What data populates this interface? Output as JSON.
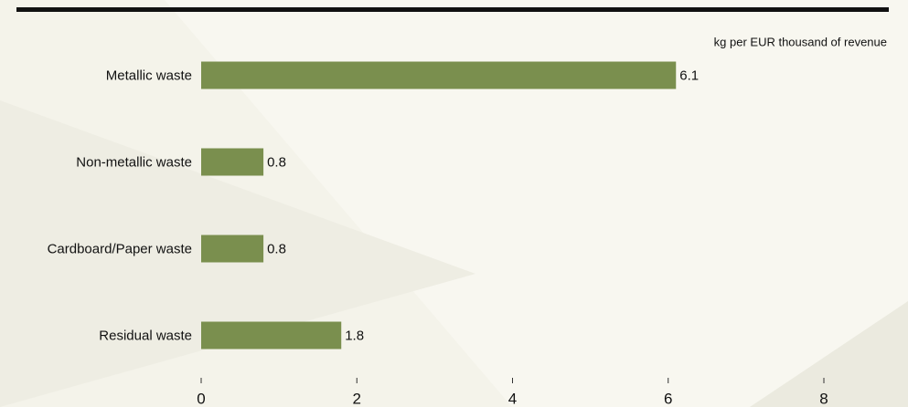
{
  "chart_data": {
    "type": "bar",
    "orientation": "horizontal",
    "subtitle": "kg per EUR thousand of revenue",
    "categories": [
      "Metallic waste",
      "Non-metallic waste",
      "Cardboard/Paper waste",
      "Residual waste"
    ],
    "values": [
      6.1,
      0.8,
      0.8,
      1.8
    ],
    "color": "#7a8f4e",
    "xlim": [
      0,
      8
    ],
    "xticks": [
      0,
      2,
      4,
      6,
      8
    ],
    "grid": false
  }
}
